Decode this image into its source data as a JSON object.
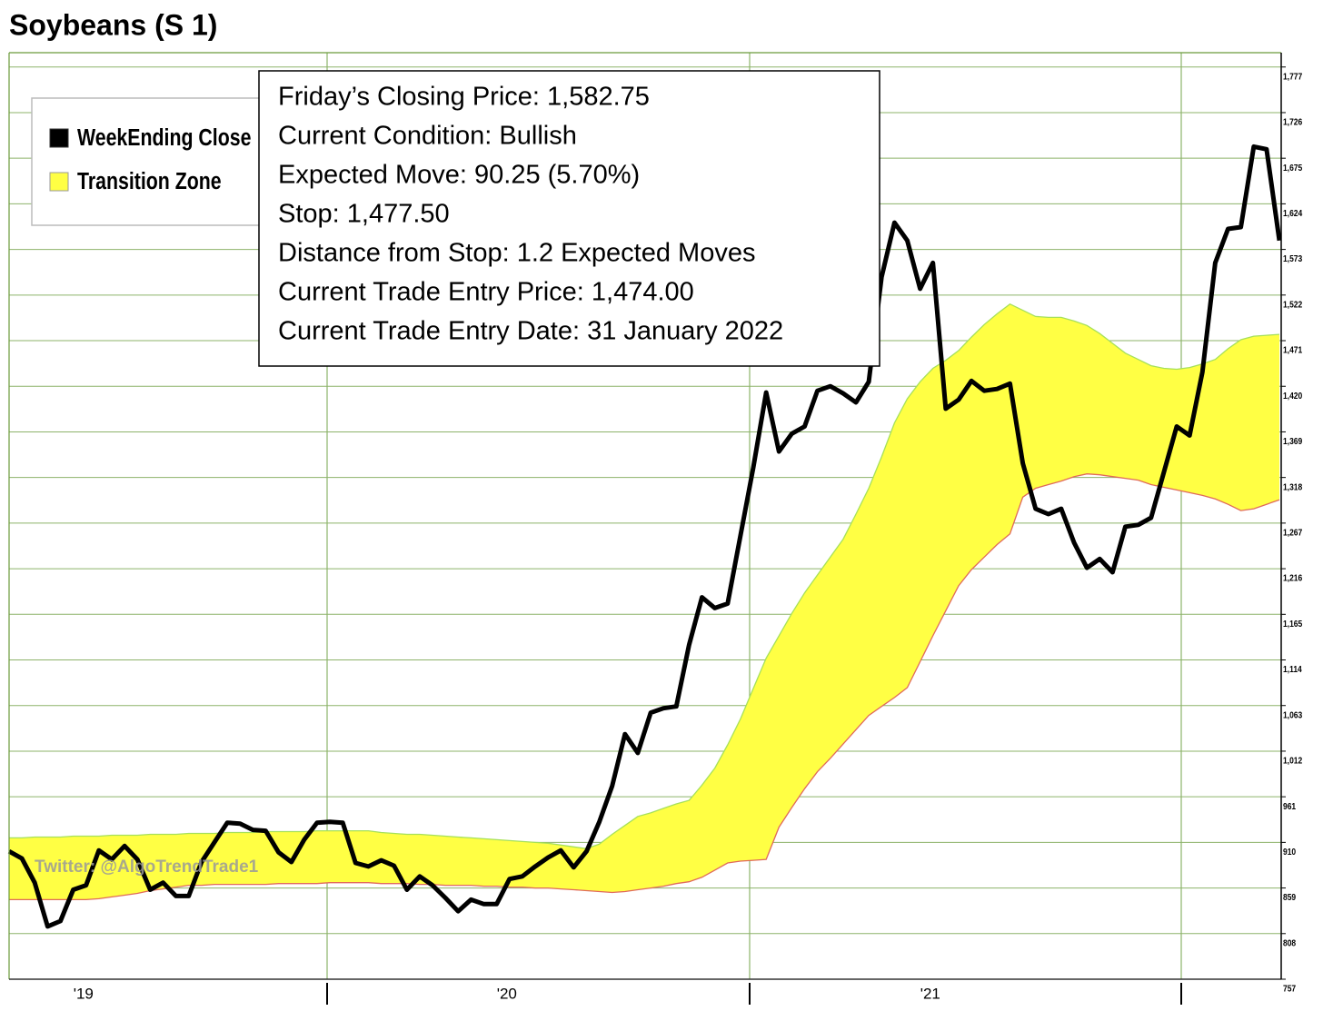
{
  "chart_data": {
    "type": "line",
    "title": "Soybeans (S 1)",
    "watermark": "Twitter: @AlgoTrendTrade1",
    "info": [
      "Friday’s Closing Price: 1,582.75",
      "Current Condition: Bullish",
      "Expected Move: 90.25 (5.70%)",
      "Stop: 1,477.50",
      "Distance from Stop: 1.2 Expected Moves",
      "Current Trade Entry Price: 1,474.00",
      "Current Trade Entry Date: 31 January 2022"
    ],
    "categories": [
      null,
      null,
      null,
      null,
      null,
      null,
      "'19",
      null,
      null,
      null,
      null,
      null,
      null,
      null,
      null,
      null,
      null,
      null,
      null,
      null,
      null,
      null,
      null,
      null,
      null,
      null,
      null,
      null,
      null,
      null,
      null,
      null,
      null,
      null,
      null,
      null,
      null,
      null,
      null,
      "'20",
      null,
      null,
      null,
      null,
      null,
      null,
      null,
      null,
      null,
      null,
      null,
      null,
      null,
      null,
      null,
      null,
      null,
      null,
      null,
      null,
      null,
      null,
      null,
      null,
      null,
      null,
      null,
      null,
      null,
      null,
      null,
      null,
      "'21",
      null,
      null,
      null,
      null,
      null,
      null,
      null,
      null,
      null,
      null,
      null,
      null,
      null,
      null,
      null,
      null,
      null,
      null,
      null,
      null,
      null,
      null,
      null,
      null,
      null,
      null,
      null
    ],
    "series": [
      {
        "name": "WeekEnding Close",
        "color": "#000000",
        "values": [
          900,
          892,
          865,
          816,
          822,
          857,
          862,
          901,
          891,
          906,
          891,
          857,
          865,
          850,
          850,
          888,
          910,
          932,
          931,
          924,
          923,
          899,
          888,
          913,
          932,
          933,
          932,
          887,
          883,
          890,
          884,
          857,
          872,
          862,
          848,
          833,
          846,
          841,
          841,
          869,
          872,
          883,
          893,
          901,
          882,
          900,
          933,
          973,
          1031,
          1010,
          1055,
          1060,
          1062,
          1131,
          1184,
          1172,
          1177,
          1253,
          1329,
          1413,
          1347,
          1367,
          1375,
          1415,
          1420,
          1412,
          1402,
          1425,
          1542,
          1603,
          1583,
          1529,
          1558,
          1395,
          1405,
          1426,
          1415,
          1417,
          1423,
          1334,
          1283,
          1277,
          1283,
          1245,
          1217,
          1227,
          1212,
          1263,
          1265,
          1273,
          1324,
          1375,
          1365,
          1436,
          1558,
          1596,
          1598,
          1688,
          1685,
          1583
        ]
      },
      {
        "name": "Transition Zone",
        "color": "#ffff44",
        "upper_color": "#a6e05a",
        "lower_color": "#e06a5a",
        "upper": [
          915,
          915,
          916,
          916,
          916,
          917,
          917,
          917,
          918,
          918,
          918,
          919,
          919,
          919,
          920,
          920,
          920,
          921,
          921,
          921,
          922,
          922,
          922,
          922,
          923,
          923,
          923,
          923,
          923,
          921,
          920,
          919,
          919,
          918,
          917,
          916,
          915,
          914,
          913,
          912,
          911,
          910,
          909,
          907,
          905,
          903,
          908,
          919,
          929,
          939,
          943,
          948,
          953,
          957,
          974,
          993,
          1019,
          1048,
          1082,
          1116,
          1141,
          1166,
          1189,
          1209,
          1229,
          1249,
          1277,
          1306,
          1341,
          1379,
          1406,
          1425,
          1440,
          1449,
          1460,
          1475,
          1489,
          1501,
          1512,
          1505,
          1498,
          1497,
          1497,
          1493,
          1488,
          1479,
          1468,
          1457,
          1450,
          1443,
          1440,
          1439,
          1441,
          1445,
          1450,
          1462,
          1472,
          1476,
          1477,
          1478
        ],
        "lower": [
          846,
          846,
          846,
          846,
          846,
          846,
          846,
          847,
          849,
          851,
          853,
          856,
          858,
          860,
          862,
          862,
          863,
          863,
          863,
          863,
          863,
          864,
          864,
          864,
          864,
          865,
          865,
          865,
          865,
          864,
          864,
          864,
          863,
          863,
          862,
          862,
          862,
          861,
          861,
          860,
          860,
          859,
          859,
          858,
          857,
          856,
          855,
          854,
          855,
          857,
          859,
          861,
          864,
          866,
          871,
          879,
          887,
          889,
          890,
          891,
          927,
          949,
          970,
          989,
          1004,
          1020,
          1036,
          1052,
          1062,
          1072,
          1083,
          1112,
          1141,
          1169,
          1197,
          1215,
          1229,
          1243,
          1255,
          1296,
          1306,
          1310,
          1314,
          1319,
          1322,
          1321,
          1319,
          1317,
          1315,
          1310,
          1307,
          1304,
          1301,
          1298,
          1294,
          1288,
          1281,
          1283,
          1288,
          1293
        ]
      }
    ],
    "ylim": [
      757,
      1793
    ],
    "yticks": [
      757,
      808,
      859,
      910,
      961,
      {
        "value": 1012,
        "label": "1,012"
      },
      {
        "value": 1063,
        "label": "1,063"
      },
      {
        "value": 1114,
        "label": "1,114"
      },
      {
        "value": 1165,
        "label": "1,165"
      },
      {
        "value": 1216,
        "label": "1,216"
      },
      {
        "value": 1267,
        "label": "1,267"
      },
      {
        "value": 1318,
        "label": "1,318"
      },
      {
        "value": 1369,
        "label": "1,369"
      },
      {
        "value": 1420,
        "label": "1,420"
      },
      {
        "value": 1471,
        "label": "1,471"
      },
      {
        "value": 1522,
        "label": "1,522"
      },
      {
        "value": 1573,
        "label": "1,573"
      },
      {
        "value": 1624,
        "label": "1,624"
      },
      {
        "value": 1675,
        "label": "1,675"
      },
      {
        "value": 1726,
        "label": "1,726"
      },
      {
        "value": 1777,
        "label": "1,777"
      }
    ],
    "grid": true,
    "grid_color": "#8db36a"
  }
}
